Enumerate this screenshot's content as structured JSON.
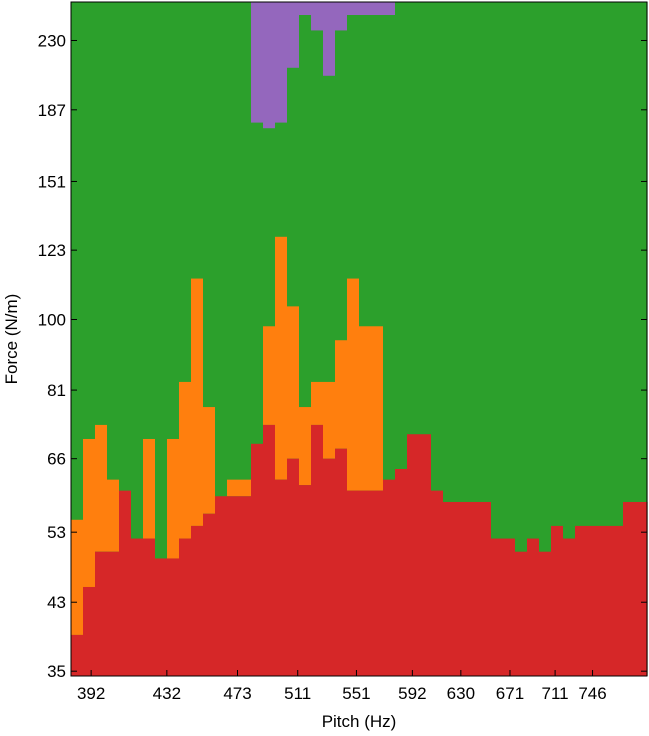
{
  "chart_data": {
    "type": "heatmap",
    "title": "",
    "xlabel": "Pitch (Hz)",
    "ylabel": "Force (N/m)",
    "x_scale": "log",
    "y_scale": "log",
    "x_range_hz": [
      382,
      800
    ],
    "y_range_nm": [
      34.5,
      258
    ],
    "x_ticks": [
      {
        "v": 392,
        "label": "392"
      },
      {
        "v": 432,
        "label": "432"
      },
      {
        "v": 473,
        "label": "473"
      },
      {
        "v": 511,
        "label": "511"
      },
      {
        "v": 551,
        "label": "551"
      },
      {
        "v": 592,
        "label": "592"
      },
      {
        "v": 630,
        "label": "630"
      },
      {
        "v": 671,
        "label": "671"
      },
      {
        "v": 711,
        "label": "711"
      },
      {
        "v": 746,
        "label": "746"
      }
    ],
    "y_ticks": [
      {
        "v": 35,
        "label": "35"
      },
      {
        "v": 43,
        "label": "43"
      },
      {
        "v": 53,
        "label": "53"
      },
      {
        "v": 66,
        "label": "66"
      },
      {
        "v": 81,
        "label": "81"
      },
      {
        "v": 100,
        "label": "100"
      },
      {
        "v": 123,
        "label": "123"
      },
      {
        "v": 151,
        "label": "151"
      },
      {
        "v": 187,
        "label": "187"
      },
      {
        "v": 230,
        "label": "230"
      }
    ],
    "grid": false,
    "legend": "none",
    "region_colors": {
      "red": "#d62728",
      "orange": "#ff7f0e",
      "green": "#2ca02c",
      "purple": "#9467bd"
    },
    "columns": 48,
    "red_top_force": [
      39,
      45,
      50,
      50,
      60,
      52,
      52,
      49,
      49,
      52,
      54,
      56,
      59,
      59,
      59,
      69,
      73,
      62,
      66,
      61,
      73,
      66,
      68,
      60,
      60,
      60,
      62,
      64,
      71,
      71,
      60,
      58,
      58,
      58,
      58,
      52,
      52,
      50,
      52,
      54,
      54,
      52,
      54,
      54,
      54,
      54,
      58,
      58
    ],
    "orange_top_force": [
      55,
      70,
      73,
      62,
      0,
      0,
      70,
      0,
      70,
      83,
      113,
      77,
      0,
      62,
      62,
      0,
      98,
      128,
      104,
      77,
      83,
      83,
      94,
      113,
      98,
      98,
      0,
      0,
      0,
      0,
      0,
      0,
      0,
      0,
      0,
      0,
      0,
      0,
      0,
      0,
      0,
      0,
      0,
      0,
      0,
      0,
      0,
      0
    ],
    "purple_bottom_force": [
      0,
      0,
      0,
      0,
      0,
      0,
      0,
      0,
      0,
      0,
      0,
      0,
      0,
      0,
      0,
      180,
      177,
      180,
      212,
      0,
      237,
      207,
      237,
      0,
      0,
      0,
      0,
      0,
      0,
      0,
      0,
      0,
      0,
      0,
      0,
      0,
      0,
      0,
      0,
      0,
      0,
      0,
      0,
      0,
      0,
      0,
      0,
      0
    ],
    "purple_column_range": [
      15,
      26
    ],
    "green_bottom_force": [
      0,
      0,
      0,
      0,
      0,
      0,
      0,
      0,
      0,
      0,
      0,
      0,
      0,
      0,
      0,
      0,
      0,
      0,
      0,
      0,
      0,
      0,
      0,
      0,
      0,
      0,
      0,
      0,
      0,
      0,
      0,
      0,
      0,
      0,
      0,
      0,
      0,
      0,
      0,
      50,
      0,
      0,
      0,
      0,
      0,
      0,
      0,
      58
    ]
  }
}
